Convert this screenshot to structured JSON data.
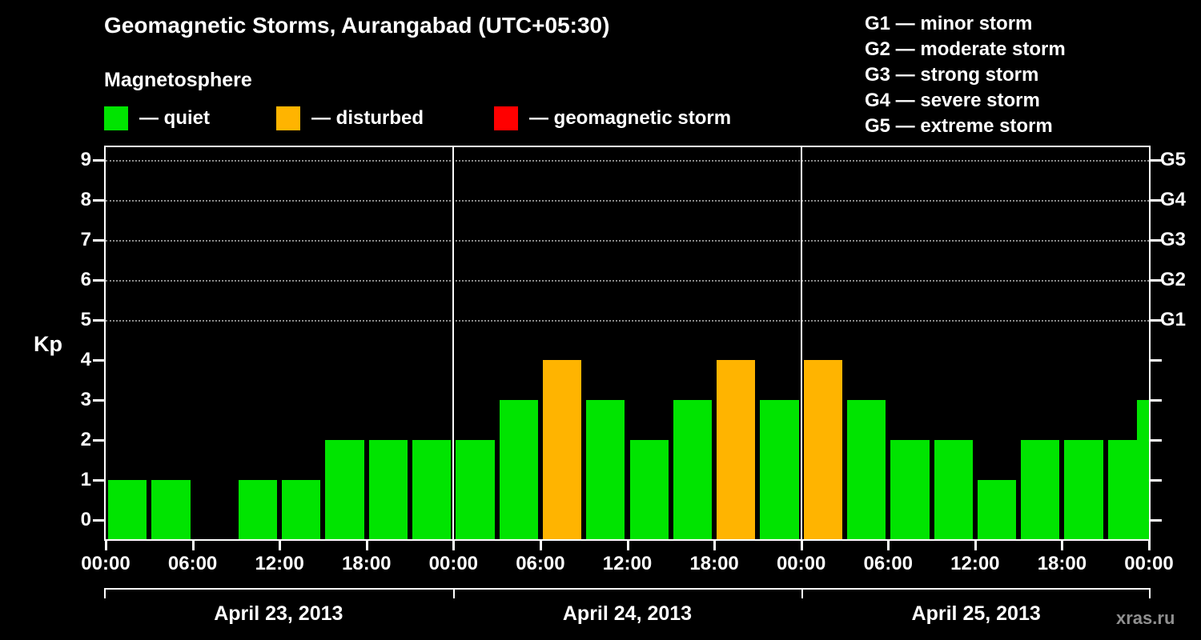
{
  "header": {
    "title": "Geomagnetic Storms, Aurangabad (UTC+05:30)",
    "subtitle": "Magnetosphere"
  },
  "legend": {
    "items": [
      {
        "key": "quiet",
        "label": "— quiet"
      },
      {
        "key": "disturbed",
        "label": "— disturbed"
      },
      {
        "key": "storm",
        "label": "— geomagnetic storm"
      }
    ]
  },
  "g_scale_legend": {
    "items": [
      {
        "text": "G1 — minor storm"
      },
      {
        "text": "G2 — moderate storm"
      },
      {
        "text": "G3 — strong storm"
      },
      {
        "text": "G4 — severe storm"
      },
      {
        "text": "G5 — extreme storm"
      }
    ]
  },
  "watermark": "xras.ru",
  "chart_data": {
    "type": "bar",
    "title": "Geomagnetic Storms, Aurangabad (UTC+05:30)",
    "subtitle": "Magnetosphere",
    "ylabel": "Kp",
    "ylim": [
      0,
      9.4
    ],
    "y_ticks": [
      0,
      1,
      2,
      3,
      4,
      5,
      6,
      7,
      8,
      9
    ],
    "g_ticks": [
      {
        "label": "G1",
        "kp": 5
      },
      {
        "label": "G2",
        "kp": 6
      },
      {
        "label": "G3",
        "kp": 7
      },
      {
        "label": "G4",
        "kp": 8
      },
      {
        "label": "G5",
        "kp": 9
      }
    ],
    "x_tick_labels": [
      "00:00",
      "06:00",
      "12:00",
      "18:00",
      "00:00",
      "06:00",
      "12:00",
      "18:00",
      "00:00",
      "06:00",
      "12:00",
      "18:00",
      "00:00"
    ],
    "bar_interval_hours": 3,
    "days": [
      {
        "date": "April 23, 2013",
        "kp_values": [
          1,
          1,
          0,
          1,
          1,
          2,
          2,
          2
        ]
      },
      {
        "date": "April 24, 2013",
        "kp_values": [
          2,
          3,
          4,
          3,
          2,
          3,
          4,
          3
        ]
      },
      {
        "date": "April 25, 2013",
        "kp_values": [
          4,
          3,
          2,
          2,
          1,
          2,
          2,
          2
        ]
      }
    ],
    "next_day_partial_value": 3,
    "colors": {
      "quiet": "#00e400",
      "disturbed": "#ffb400",
      "storm": "#ff0000"
    },
    "color_rule": {
      "quiet_max_kp": 3,
      "disturbed_kp": 4,
      "storm_min_kp": 5
    },
    "legend_position": "top",
    "grid": "dotted horizontal lines at Kp 5-9"
  }
}
